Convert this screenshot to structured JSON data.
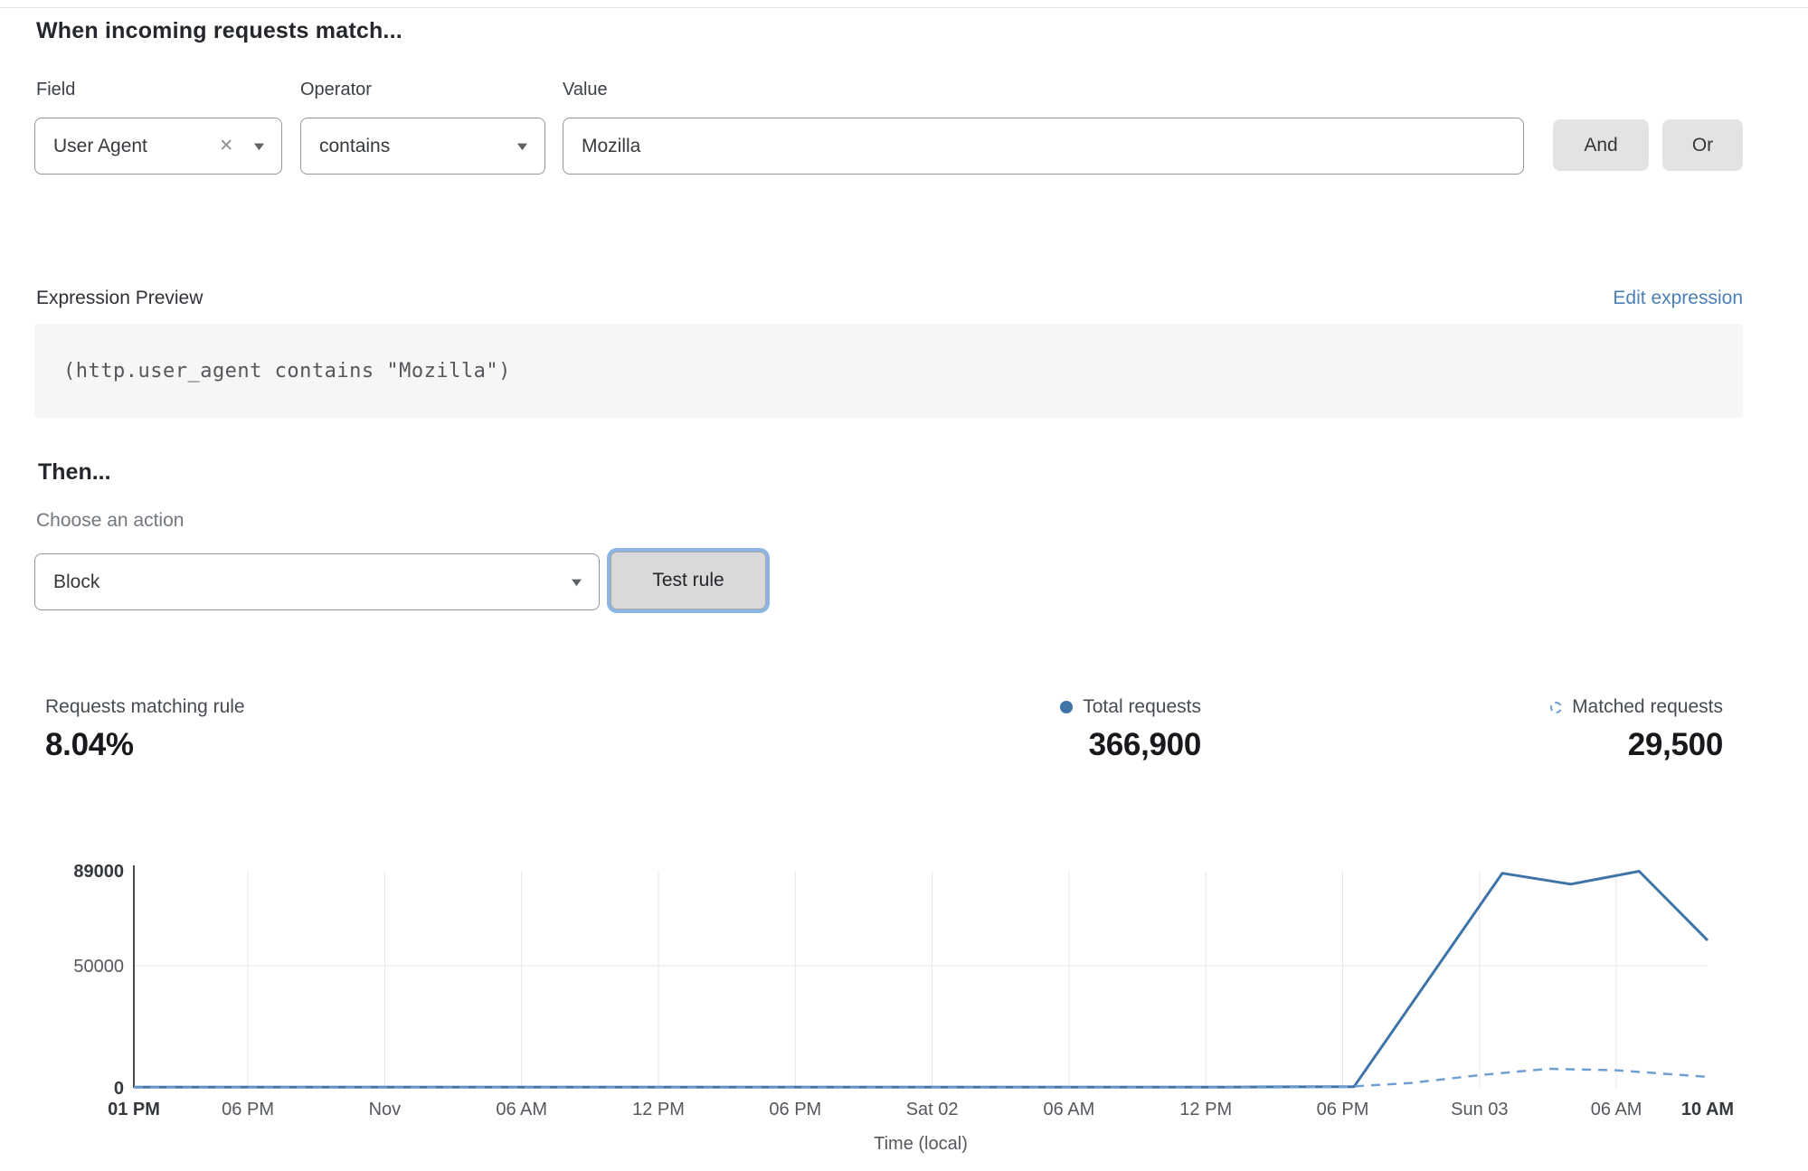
{
  "header": {
    "title": "When incoming requests match..."
  },
  "rule_builder": {
    "field": {
      "label": "Field",
      "value": "User Agent"
    },
    "operator": {
      "label": "Operator",
      "value": "contains"
    },
    "value": {
      "label": "Value",
      "value": "Mozilla"
    },
    "and_label": "And",
    "or_label": "Or"
  },
  "expression": {
    "label": "Expression Preview",
    "edit_link": "Edit expression",
    "code": "(http.user_agent contains \"Mozilla\")"
  },
  "action": {
    "heading": "Then...",
    "label": "Choose an action",
    "selected": "Block",
    "test_button": "Test rule"
  },
  "stats": {
    "matching": {
      "label": "Requests matching rule",
      "value": "8.04%"
    },
    "total": {
      "label": "Total requests",
      "value": "366,900"
    },
    "matched": {
      "label": "Matched requests",
      "value": "29,500"
    }
  },
  "colors": {
    "accent_blue": "#3e74a8",
    "dashed_blue": "#6f9fd3",
    "link_blue": "#4a80b5",
    "grid_gray": "#e7e7e7",
    "axis_gray": "#4a4a4a",
    "focus_ring": "#8cb4e4"
  },
  "chart_data": {
    "type": "line",
    "title": "",
    "xlabel": "Time (local)",
    "ylabel": "",
    "x_unit": "hours from first tick (01 PM Oct 31)",
    "xlim": [
      0,
      69
    ],
    "ylim": [
      0,
      89000
    ],
    "grid": {
      "vertical_at_ticks": true,
      "horizontal_at": [
        50000
      ]
    },
    "legend_position": "above-right (as stats row)",
    "y_ticks": [
      {
        "value": 89000,
        "label": "89000",
        "bold": true
      },
      {
        "value": 50000,
        "label": "50000",
        "bold": false
      },
      {
        "value": 0,
        "label": "0",
        "bold": true
      }
    ],
    "x_ticks": [
      {
        "hour": 0,
        "label": "01 PM",
        "bold": true
      },
      {
        "hour": 5,
        "label": "06 PM",
        "bold": false
      },
      {
        "hour": 11,
        "label": "Nov",
        "bold": false
      },
      {
        "hour": 17,
        "label": "06 AM",
        "bold": false
      },
      {
        "hour": 23,
        "label": "12 PM",
        "bold": false
      },
      {
        "hour": 29,
        "label": "06 PM",
        "bold": false
      },
      {
        "hour": 35,
        "label": "Sat 02",
        "bold": false
      },
      {
        "hour": 41,
        "label": "06 AM",
        "bold": false
      },
      {
        "hour": 47,
        "label": "12 PM",
        "bold": false
      },
      {
        "hour": 53,
        "label": "06 PM",
        "bold": false
      },
      {
        "hour": 59,
        "label": "Sun 03",
        "bold": false
      },
      {
        "hour": 65,
        "label": "06 AM",
        "bold": false
      },
      {
        "hour": 69,
        "label": "10 AM",
        "bold": true
      }
    ],
    "series": [
      {
        "name": "Total requests",
        "style": "solid",
        "x": [
          0,
          6,
          12,
          18,
          24,
          30,
          36,
          42,
          48,
          53.5,
          60,
          63,
          66,
          69
        ],
        "y": [
          300,
          300,
          300,
          300,
          300,
          300,
          300,
          300,
          300,
          500,
          88000,
          83500,
          88800,
          60500
        ]
      },
      {
        "name": "Matched requests",
        "style": "dashed",
        "x": [
          0,
          6,
          12,
          18,
          24,
          30,
          36,
          42,
          48,
          53,
          56,
          59,
          62,
          65,
          69
        ],
        "y": [
          150,
          150,
          150,
          150,
          150,
          150,
          150,
          150,
          150,
          300,
          2000,
          5200,
          7800,
          7200,
          4500
        ]
      }
    ]
  }
}
